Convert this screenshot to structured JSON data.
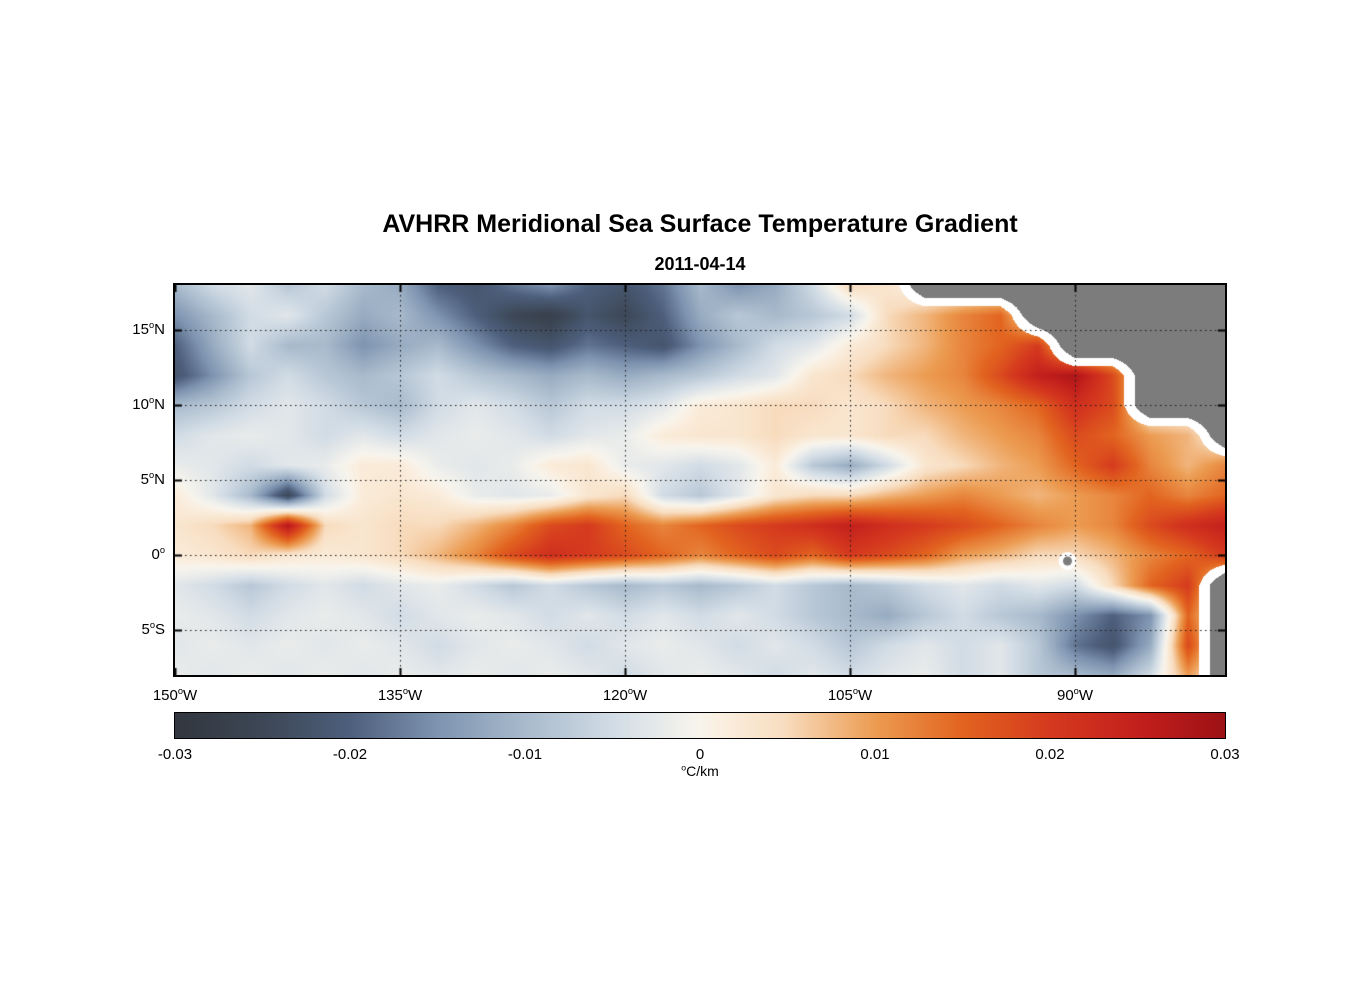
{
  "title": "AVHRR Meridional Sea Surface Temperature Gradient",
  "subtitle_date": "2011-04-14",
  "chart_data": {
    "type": "heatmap",
    "title": "AVHRR Meridional Sea Surface Temperature Gradient",
    "date": "2011-04-14",
    "units_label": {
      "deg": "o",
      "text": "C/km"
    },
    "grid_style": "dotted",
    "map": {
      "lon_west_range": [
        150,
        80
      ],
      "lat_range": [
        18,
        -8
      ],
      "deg_symbol": "o",
      "xticks": [
        {
          "num": "150",
          "hemi": "W",
          "lon_w": 150
        },
        {
          "num": "135",
          "hemi": "W",
          "lon_w": 135
        },
        {
          "num": "120",
          "hemi": "W",
          "lon_w": 120
        },
        {
          "num": "105",
          "hemi": "W",
          "lon_w": 105
        },
        {
          "num": "90",
          "hemi": "W",
          "lon_w": 90
        }
      ],
      "yticks": [
        {
          "num": "15",
          "hemi": "N",
          "lat": 15
        },
        {
          "num": "10",
          "hemi": "N",
          "lat": 10
        },
        {
          "num": "5",
          "hemi": "N",
          "lat": 5
        },
        {
          "num": "0",
          "hemi": "",
          "lat": 0
        },
        {
          "num": "5",
          "hemi": "S",
          "lat": -5
        }
      ],
      "land_color": "#7c7c7c",
      "coast_halo_color": "#ffffff",
      "gridline_color": "#1a1a1a",
      "islands": [
        {
          "name": "Galapagos",
          "lon_w": 90.5,
          "lat": -0.4
        }
      ],
      "grid_lons_w": [
        150,
        147.5,
        145,
        142.5,
        140,
        137.5,
        135,
        132.5,
        130,
        127.5,
        125,
        122.5,
        120,
        117.5,
        115,
        112.5,
        110,
        107.5,
        105,
        102.5,
        100,
        97.5,
        95,
        92.5,
        90,
        87.5,
        85,
        82.5,
        80
      ],
      "grid_lats": [
        18,
        16,
        14,
        12,
        10,
        8,
        6,
        4,
        2,
        0,
        -2,
        -4,
        -6,
        -8
      ],
      "values_scale": 0.001,
      "values": [
        [
          -10,
          -5,
          -3,
          -8,
          -5,
          -10,
          -12,
          -20,
          -22,
          -18,
          -15,
          -20,
          -22,
          -18,
          -10,
          -15,
          -12,
          -5,
          5,
          3,
          null,
          null,
          null,
          null,
          null,
          null,
          null,
          null,
          null
        ],
        [
          -15,
          -10,
          -5,
          -3,
          -8,
          -12,
          -10,
          -15,
          -20,
          -25,
          -27,
          -22,
          -25,
          -20,
          -12,
          -8,
          -10,
          -8,
          -5,
          5,
          8,
          12,
          15,
          null,
          null,
          null,
          null,
          null,
          null
        ],
        [
          -20,
          -12,
          -5,
          -10,
          -10,
          -15,
          -12,
          -10,
          -15,
          -20,
          -22,
          -18,
          -20,
          -22,
          -15,
          -10,
          -5,
          -3,
          2,
          5,
          8,
          12,
          15,
          20,
          null,
          null,
          null,
          null,
          null
        ],
        [
          -22,
          -15,
          -8,
          -5,
          -8,
          -10,
          -8,
          -5,
          -8,
          -10,
          -12,
          -10,
          -12,
          -10,
          -8,
          -5,
          -3,
          3,
          5,
          8,
          10,
          12,
          18,
          25,
          28,
          18,
          null,
          null,
          null
        ],
        [
          -10,
          -8,
          -5,
          -3,
          -5,
          -8,
          -10,
          -5,
          -3,
          -5,
          -8,
          -5,
          -5,
          -3,
          2,
          3,
          5,
          5,
          3,
          5,
          8,
          10,
          12,
          15,
          22,
          18,
          null,
          null,
          null
        ],
        [
          -5,
          -3,
          -2,
          -3,
          -5,
          -3,
          -5,
          -3,
          -2,
          -3,
          -5,
          -3,
          -2,
          2,
          3,
          3,
          5,
          3,
          3,
          5,
          5,
          8,
          10,
          12,
          18,
          15,
          10,
          8,
          null
        ],
        [
          -2,
          -3,
          -5,
          -3,
          -2,
          2,
          2,
          -2,
          -3,
          -2,
          2,
          3,
          -2,
          -3,
          -5,
          -3,
          2,
          -8,
          -12,
          -5,
          3,
          5,
          8,
          10,
          15,
          20,
          12,
          8,
          12
        ],
        [
          2,
          -3,
          -10,
          -25,
          -5,
          2,
          3,
          2,
          -2,
          -3,
          -2,
          3,
          5,
          -5,
          -8,
          -3,
          3,
          5,
          5,
          8,
          10,
          12,
          10,
          8,
          10,
          12,
          15,
          12,
          15
        ],
        [
          3,
          5,
          8,
          27,
          5,
          3,
          5,
          5,
          8,
          12,
          18,
          20,
          15,
          12,
          15,
          18,
          20,
          22,
          25,
          22,
          20,
          18,
          15,
          12,
          10,
          12,
          18,
          22,
          25
        ],
        [
          2,
          3,
          5,
          3,
          2,
          3,
          5,
          8,
          12,
          18,
          22,
          20,
          18,
          15,
          12,
          15,
          18,
          15,
          20,
          18,
          15,
          10,
          8,
          5,
          5,
          8,
          12,
          15,
          20
        ],
        [
          -3,
          -5,
          -8,
          -5,
          -3,
          -5,
          -3,
          -2,
          -5,
          -8,
          -5,
          -8,
          -10,
          -8,
          -10,
          -8,
          -5,
          -8,
          -10,
          -8,
          -5,
          -3,
          -5,
          -3,
          -5,
          5,
          15,
          20,
          null
        ],
        [
          -2,
          -3,
          -5,
          -3,
          -2,
          -3,
          -5,
          -3,
          -2,
          -3,
          -5,
          -3,
          -5,
          -3,
          -5,
          -3,
          -5,
          -8,
          -10,
          -12,
          -8,
          -5,
          -8,
          -10,
          -15,
          -20,
          -15,
          15,
          null
        ],
        [
          -3,
          -2,
          -3,
          -2,
          -3,
          -2,
          -3,
          -5,
          -3,
          -2,
          -3,
          -5,
          -3,
          -2,
          -3,
          -5,
          -3,
          -5,
          -8,
          -5,
          -3,
          -5,
          -3,
          -8,
          -18,
          -22,
          -12,
          18,
          null
        ],
        [
          -2,
          -3,
          -2,
          -3,
          -2,
          -3,
          -2,
          -3,
          -2,
          -3,
          -2,
          -3,
          -5,
          -3,
          -2,
          -3,
          -5,
          -3,
          -5,
          -3,
          -2,
          -5,
          -3,
          -8,
          -10,
          -12,
          -5,
          10,
          null
        ]
      ]
    },
    "colorbar": {
      "min": -0.03,
      "max": 0.03,
      "ticks": [
        "-0.03",
        "-0.02",
        "-0.01",
        "0",
        "0.01",
        "0.02",
        "0.03"
      ],
      "unit_deg": "o",
      "unit_text": "C/km",
      "stops": [
        {
          "t": 0.0,
          "color": "#32373f"
        },
        {
          "t": 0.08,
          "color": "#3c4654"
        },
        {
          "t": 0.1667,
          "color": "#4d5f7c"
        },
        {
          "t": 0.25,
          "color": "#7e94b0"
        },
        {
          "t": 0.3333,
          "color": "#a8bacc"
        },
        {
          "t": 0.42,
          "color": "#d3dde6"
        },
        {
          "t": 0.48,
          "color": "#f0f0ec"
        },
        {
          "t": 0.5,
          "color": "#f8f4ec"
        },
        {
          "t": 0.52,
          "color": "#faefe0"
        },
        {
          "t": 0.58,
          "color": "#f8ddc0"
        },
        {
          "t": 0.6667,
          "color": "#ec9c52"
        },
        {
          "t": 0.75,
          "color": "#e2641f"
        },
        {
          "t": 0.8333,
          "color": "#d53a1e"
        },
        {
          "t": 0.92,
          "color": "#c21f1c"
        },
        {
          "t": 1.0,
          "color": "#9d1115"
        }
      ]
    }
  }
}
